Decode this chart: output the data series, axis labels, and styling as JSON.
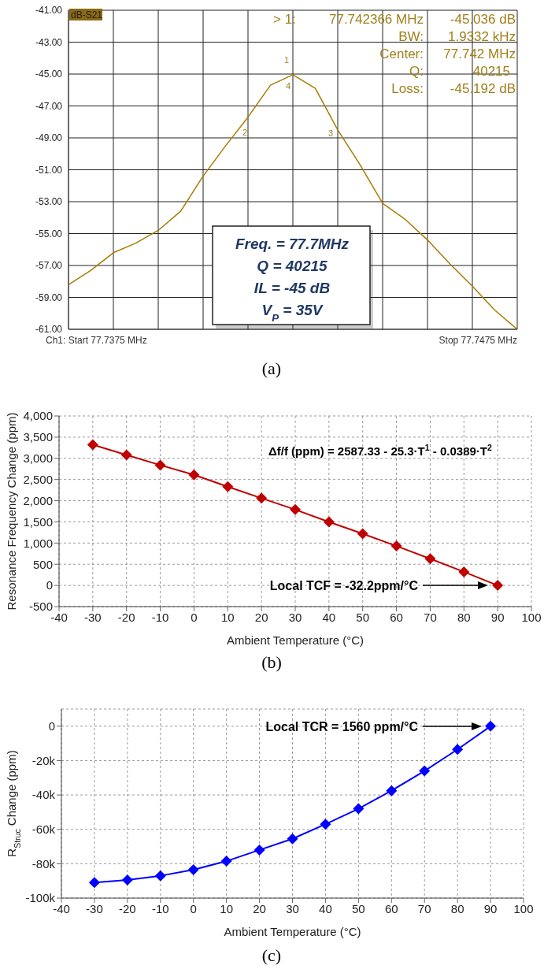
{
  "chart_data": [
    {
      "type": "line",
      "categories": [
        null,
        null,
        null,
        null,
        null,
        null,
        null,
        null,
        null,
        null,
        null,
        null,
        null,
        null,
        null,
        null,
        null,
        null,
        null,
        null,
        null
      ],
      "values": [
        -58.2,
        -57.3,
        -56.2,
        -55.6,
        -54.8,
        -53.6,
        -51.4,
        -49.5,
        -47.7,
        -45.7,
        -45.04,
        -45.9,
        -48.5,
        -50.7,
        -53.1,
        -54.1,
        -55.4,
        -56.9,
        -58.3,
        -59.8,
        -61.0
      ],
      "color": "#a67c00",
      "line_style": "solid",
      "marker": "none",
      "grid": true,
      "ylim": [
        -61,
        -41
      ],
      "yticks": [
        {
          "value": -61,
          "label": "-61.00"
        },
        {
          "value": -59,
          "label": "-59.00"
        },
        {
          "value": -57,
          "label": "-57.00"
        },
        {
          "value": -55,
          "label": "-55.00"
        },
        {
          "value": -53,
          "label": "-53.00"
        },
        {
          "value": -51,
          "label": "-51.00"
        },
        {
          "value": -49,
          "label": "-49.00"
        },
        {
          "value": -47,
          "label": "-47.00"
        },
        {
          "value": -45,
          "label": "-45.00"
        },
        {
          "value": -43,
          "label": "-43.00"
        },
        {
          "value": -41,
          "label": "-41.00"
        }
      ],
      "annotations": [
        "dB-S21",
        "> 1:",
        "77.742366 MHz",
        "-45.036 dB",
        "BW:",
        "1.9332 kHz",
        "Center:",
        "77.742 MHz",
        "Q:",
        "40215",
        "Loss:",
        "-45.192 dB",
        "Freq. = 77.7MHz",
        "Q = 40215",
        "IL = -45 dB",
        "V$_{P}$ = 35V",
        "(a)",
        "Ch1: Start  77.7375 MHz",
        "Stop  77.7475 MHz",
        "1",
        "4",
        "2",
        "3"
      ]
    },
    {
      "type": "line",
      "x": [
        -30,
        -20,
        -10,
        0,
        10,
        20,
        30,
        40,
        50,
        60,
        70,
        80,
        90
      ],
      "values": [
        3320,
        3080,
        2840,
        2610,
        2330,
        2060,
        1790,
        1500,
        1220,
        930,
        630,
        320,
        0
      ],
      "color": "#c00000",
      "line_style": "solid",
      "marker": "diamond",
      "grid": true,
      "xlim": [
        -40,
        100
      ],
      "xticks": [
        -40,
        -30,
        -20,
        -10,
        0,
        10,
        20,
        30,
        40,
        50,
        60,
        70,
        80,
        90,
        100
      ],
      "ylim": [
        -500,
        4000
      ],
      "yticks": [
        {
          "value": -500,
          "label": "-500"
        },
        {
          "value": 0,
          "label": "0"
        },
        {
          "value": 500,
          "label": "500"
        },
        {
          "value": 1000,
          "label": "1,000"
        },
        {
          "value": 1500,
          "label": "1,500"
        },
        {
          "value": 2000,
          "label": "2,000"
        },
        {
          "value": 2500,
          "label": "2,500"
        },
        {
          "value": 3000,
          "label": "3,000"
        },
        {
          "value": 3500,
          "label": "3,500"
        },
        {
          "value": 4000,
          "label": "4,000"
        }
      ],
      "xlabel": "Ambient Temperature (°C)",
      "ylabel": "Resonance Frequency Change (ppm)",
      "annotations": [
        "Δf/f (ppm) = 2587.33 - 25.3·T$^{1}$ - 0.0389·T$^{2}$",
        "(b)",
        "Local TCF = -32.2ppm/°C"
      ]
    },
    {
      "type": "line",
      "x": [
        -30,
        -20,
        -10,
        0,
        10,
        20,
        30,
        40,
        50,
        60,
        70,
        80,
        90
      ],
      "values": [
        -91000,
        -89500,
        -87000,
        -83500,
        -78500,
        -72000,
        -65500,
        -57000,
        -48000,
        -37500,
        -26000,
        -13500,
        0
      ],
      "color": "#0000ff",
      "line_style": "solid",
      "marker": "diamond",
      "grid": true,
      "xlim": [
        -40,
        100
      ],
      "xticks": [
        -40,
        -30,
        -20,
        -10,
        0,
        10,
        20,
        30,
        40,
        50,
        60,
        70,
        80,
        90,
        100
      ],
      "ylim": [
        -100000,
        10000
      ],
      "yticks": [
        {
          "value": -100000,
          "label": "-100k"
        },
        {
          "value": -80000,
          "label": "-80k"
        },
        {
          "value": -60000,
          "label": "-60k"
        },
        {
          "value": -40000,
          "label": "-40k"
        },
        {
          "value": -20000,
          "label": "-20k"
        },
        {
          "value": 0,
          "label": "0"
        }
      ],
      "xlabel": "Ambient Temperature (°C)",
      "ylabel": "R$_{Struc}$ Change (ppm)",
      "annotations": [
        "(c)",
        "Local TCR = 1560 ppm/°C"
      ]
    }
  ]
}
